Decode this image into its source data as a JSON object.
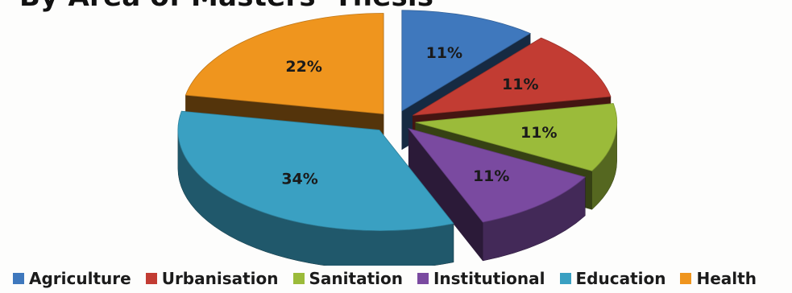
{
  "chart_data": {
    "type": "pie",
    "title": "By Area of Masters' Thesis",
    "categories": [
      "Agriculture",
      "Urbanisation",
      "Sanitation",
      "Institutional",
      "Education",
      "Health"
    ],
    "values": [
      11,
      11,
      11,
      11,
      34,
      22
    ],
    "labels": [
      "11%",
      "11%",
      "11%",
      "11%",
      "34%",
      "22%"
    ],
    "colors": [
      "#3f78bd",
      "#c23c33",
      "#9bbb3a",
      "#7a4aa0",
      "#3aa0c2",
      "#ef951e"
    ],
    "exploded": true,
    "three_d": true,
    "legend_position": "bottom"
  }
}
